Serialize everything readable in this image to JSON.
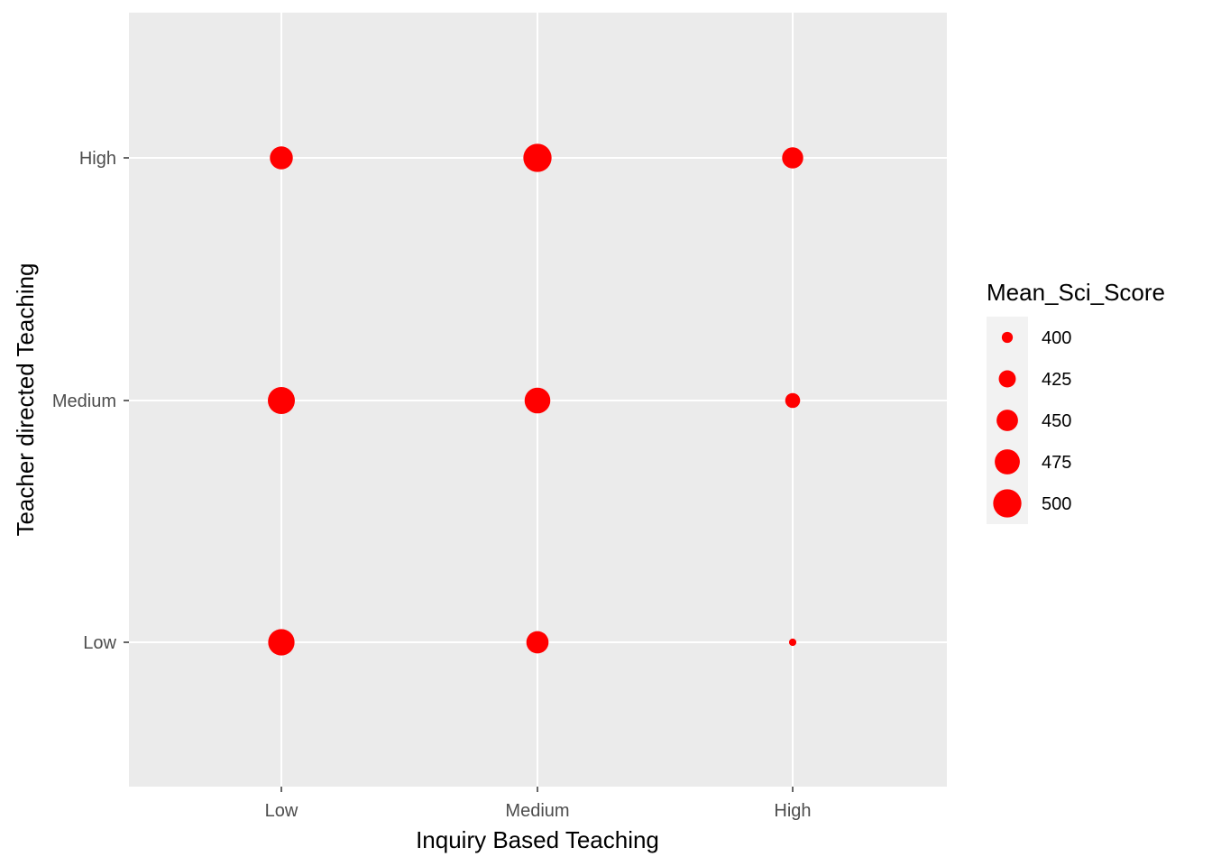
{
  "chart_data": {
    "type": "scatter",
    "x_categories": [
      "Low",
      "Medium",
      "High"
    ],
    "y_categories": [
      "Low",
      "Medium",
      "High"
    ],
    "xlabel": "Inquiry Based Teaching",
    "ylabel": "Teacher directed Teaching",
    "size_legend": {
      "title": "Mean_Sci_Score",
      "breaks": [
        400,
        425,
        450,
        475,
        500
      ]
    },
    "size_range": [
      385,
      505
    ],
    "points": [
      {
        "x": "Low",
        "y": "High",
        "value": 460
      },
      {
        "x": "Medium",
        "y": "High",
        "value": 500
      },
      {
        "x": "High",
        "y": "High",
        "value": 448
      },
      {
        "x": "Low",
        "y": "Medium",
        "value": 490
      },
      {
        "x": "Medium",
        "y": "Medium",
        "value": 480
      },
      {
        "x": "High",
        "y": "Medium",
        "value": 415
      },
      {
        "x": "Low",
        "y": "Low",
        "value": 485
      },
      {
        "x": "Medium",
        "y": "Low",
        "value": 455
      },
      {
        "x": "High",
        "y": "Low",
        "value": 390
      }
    ],
    "point_color": "#ff0000",
    "panel_background": "#ebebeb",
    "grid": true,
    "legend_position": "right"
  }
}
